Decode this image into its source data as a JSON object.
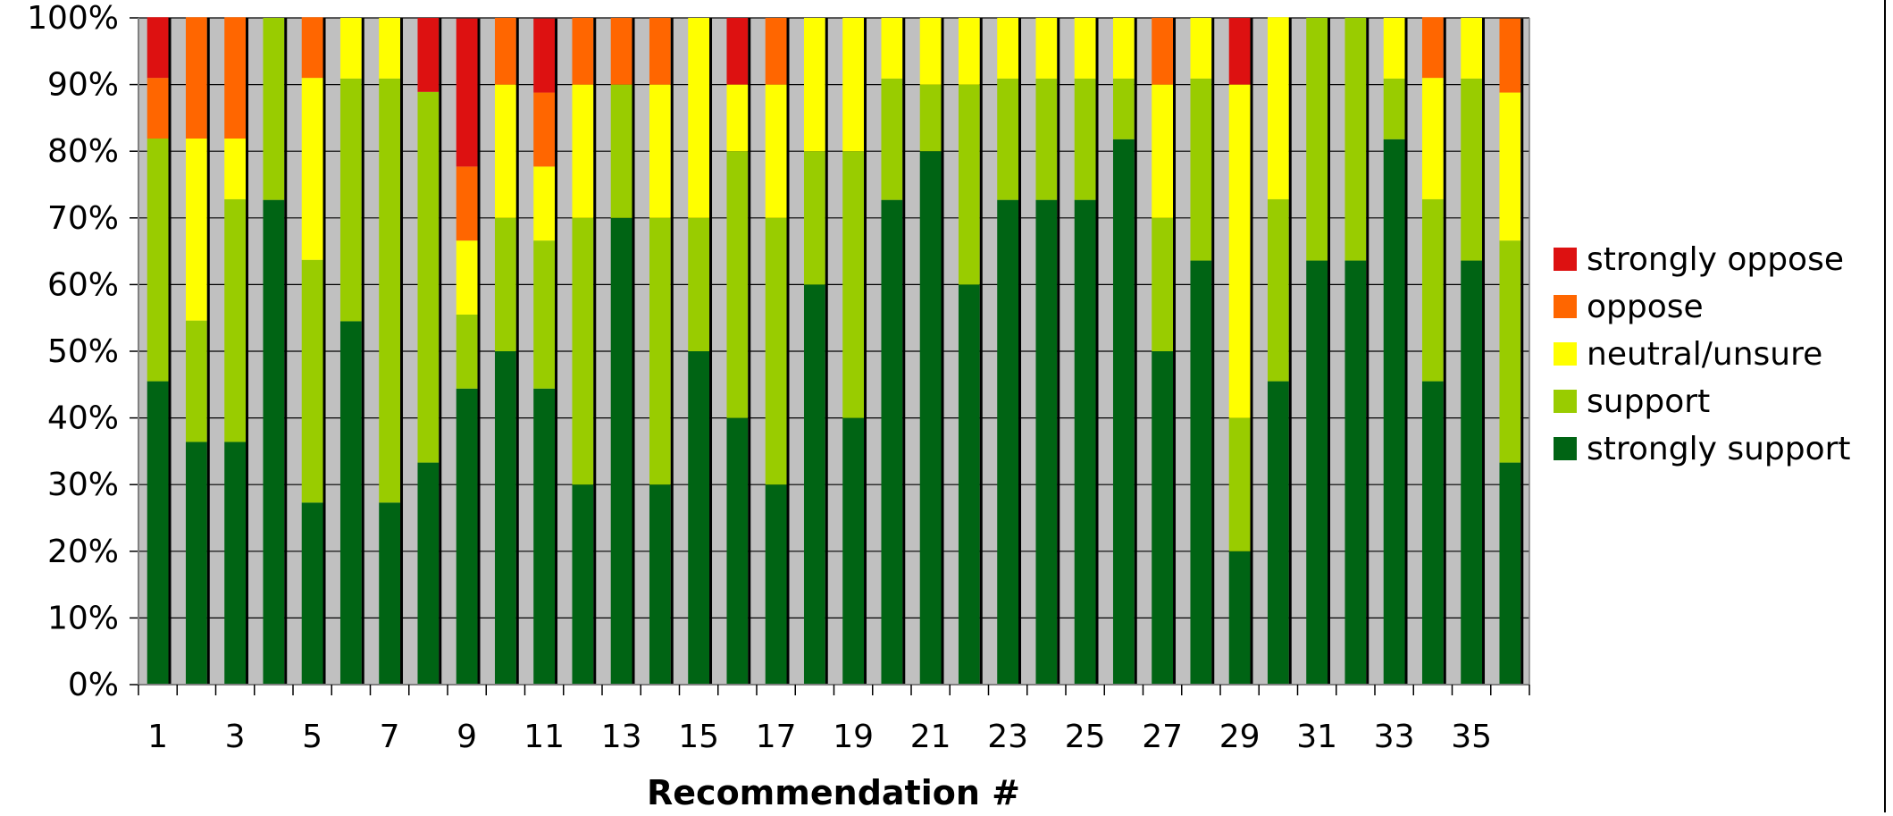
{
  "chart_data": {
    "type": "bar",
    "stacked": true,
    "percent_stacked": true,
    "categories": [
      "1",
      "2",
      "3",
      "4",
      "5",
      "6",
      "7",
      "8",
      "9",
      "10",
      "11",
      "12",
      "13",
      "14",
      "15",
      "16",
      "17",
      "18",
      "19",
      "20",
      "21",
      "22",
      "23",
      "24",
      "25",
      "26",
      "27",
      "28",
      "29",
      "30",
      "31",
      "32",
      "33",
      "34",
      "35",
      "36"
    ],
    "x_tick_labels": [
      "1",
      "",
      "3",
      "",
      "5",
      "",
      "7",
      "",
      "9",
      "",
      "11",
      "",
      "13",
      "",
      "15",
      "",
      "17",
      "",
      "19",
      "",
      "21",
      "",
      "23",
      "",
      "25",
      "",
      "27",
      "",
      "29",
      "",
      "31",
      "",
      "33",
      "",
      "35",
      ""
    ],
    "title": "",
    "xlabel": "Recommendation #",
    "ylabel": "",
    "ylim": [
      0,
      100
    ],
    "y_ticks": [
      0,
      10,
      20,
      30,
      40,
      50,
      60,
      70,
      80,
      90,
      100
    ],
    "y_tick_labels": [
      "0%",
      "10%",
      "20%",
      "30%",
      "40%",
      "50%",
      "60%",
      "70%",
      "80%",
      "90%",
      "100%"
    ],
    "grid": true,
    "legend_position": "right",
    "series": [
      {
        "name": "strongly support",
        "color": "#006414",
        "values": [
          45.5,
          36.4,
          36.4,
          72.7,
          27.3,
          54.5,
          27.3,
          33.3,
          44.4,
          50,
          44.4,
          30,
          70,
          30,
          50,
          40,
          30,
          60,
          40,
          72.7,
          80,
          60,
          72.7,
          72.7,
          72.7,
          81.8,
          50,
          63.6,
          20,
          45.5,
          63.6,
          63.6,
          81.8,
          45.5,
          63.6,
          33.3
        ]
      },
      {
        "name": "support",
        "color": "#99cc00",
        "values": [
          36.4,
          18.2,
          36.4,
          27.3,
          36.4,
          36.4,
          63.6,
          55.6,
          11.1,
          20,
          22.2,
          40,
          20,
          40,
          20,
          40,
          40,
          20,
          40,
          18.2,
          10,
          30,
          18.2,
          18.2,
          18.2,
          9.1,
          20,
          27.3,
          20,
          27.3,
          36.4,
          36.4,
          9.1,
          27.3,
          27.3,
          33.3
        ]
      },
      {
        "name": "neutral/unsure",
        "color": "#ffff00",
        "values": [
          0,
          27.3,
          9.1,
          0,
          27.3,
          9.1,
          9.1,
          0,
          11.1,
          20,
          11.1,
          20,
          0,
          20,
          30,
          10,
          20,
          20,
          20,
          9.1,
          10,
          10,
          9.1,
          9.1,
          9.1,
          9.1,
          20,
          9.1,
          50,
          27.3,
          0,
          0,
          9.1,
          18.2,
          9.1,
          22.2
        ]
      },
      {
        "name": "oppose",
        "color": "#ff6600",
        "values": [
          9.1,
          18.2,
          18.2,
          0,
          9.1,
          0,
          0,
          0,
          11.1,
          10,
          11.1,
          10,
          10,
          10,
          0,
          0,
          10,
          0,
          0,
          0,
          0,
          0,
          0,
          0,
          0,
          0,
          10,
          0,
          0,
          0,
          0,
          0,
          0,
          9.1,
          0,
          11.1
        ]
      },
      {
        "name": "strongly oppose",
        "color": "#dd1111",
        "values": [
          9.1,
          0,
          0,
          0,
          0,
          0,
          0,
          11.1,
          22.2,
          0,
          11.1,
          0,
          0,
          0,
          0,
          10,
          0,
          0,
          0,
          0,
          0,
          0,
          0,
          0,
          0,
          0,
          0,
          0,
          10,
          0,
          0,
          0,
          0,
          0,
          0,
          0
        ]
      }
    ],
    "colors": {
      "plot_background": "#c0c0c0",
      "gridline": "#000000"
    }
  }
}
